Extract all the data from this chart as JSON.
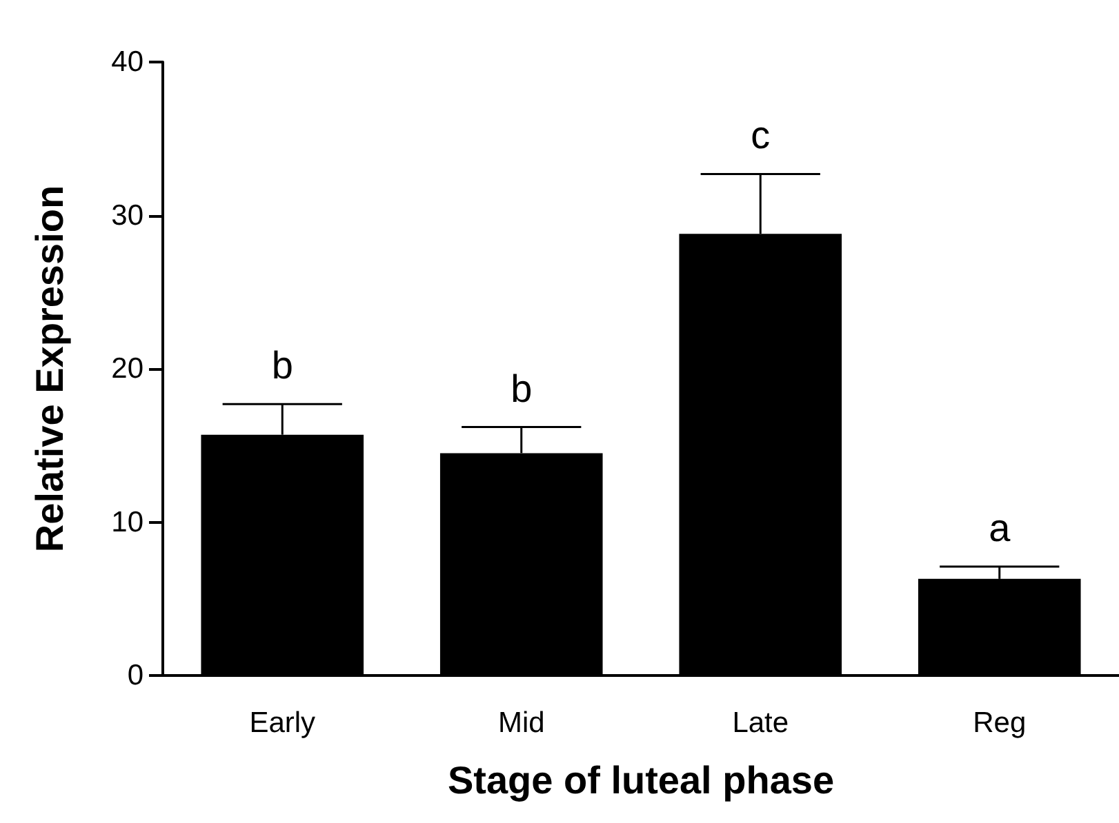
{
  "chart_data": {
    "type": "bar",
    "xlabel": "Stage of luteal phase",
    "ylabel": "Relative Expression",
    "categories": [
      "Early",
      "Mid",
      "Late",
      "Reg"
    ],
    "values": [
      15.7,
      14.5,
      28.8,
      6.3
    ],
    "errors": [
      [
        15.7,
        17.7
      ],
      [
        14.5,
        16.2
      ],
      [
        28.8,
        32.7
      ],
      [
        6.3,
        7.1
      ]
    ],
    "color": "#000000",
    "ylim": [
      0,
      40
    ],
    "yticks": [
      0,
      10,
      20,
      30,
      40
    ],
    "grid": false,
    "annotations": [
      "b",
      "b",
      "c",
      "a"
    ]
  }
}
